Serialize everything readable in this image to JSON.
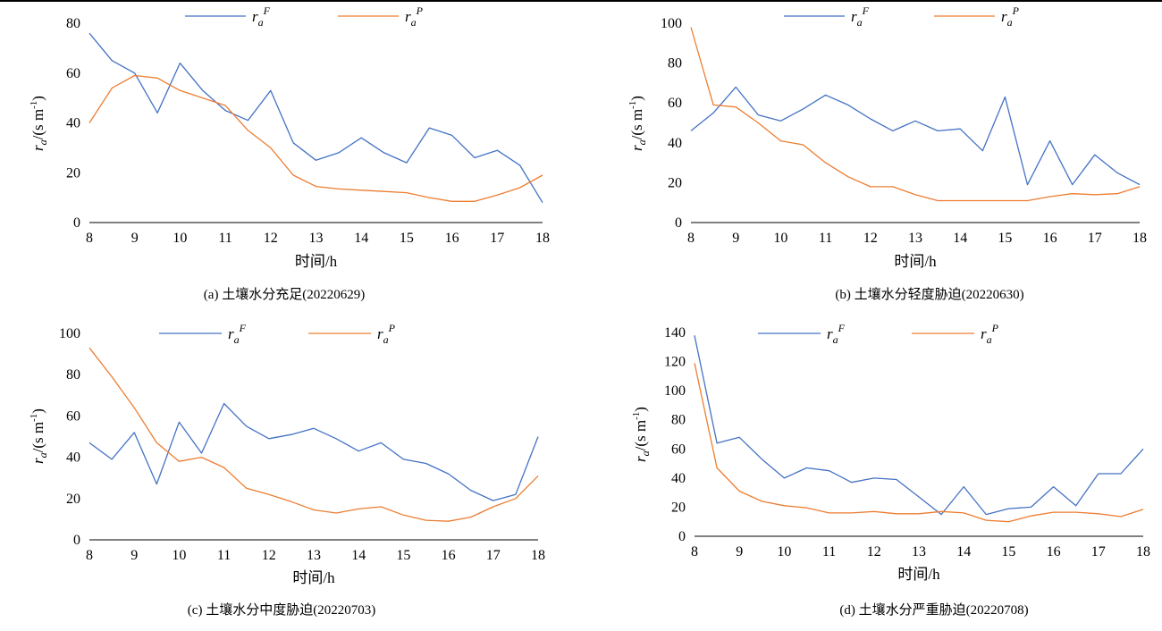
{
  "colors": {
    "F": "#4472c4",
    "P": "#ed7d31",
    "axis": "#000000"
  },
  "legend": {
    "F": {
      "base": "r",
      "sub": "a",
      "sup": "F"
    },
    "P": {
      "base": "r",
      "sub": "a",
      "sup": "P"
    }
  },
  "ylabel": {
    "base": "r",
    "sub": "a",
    "rest": "/(s m",
    "exp": "-1",
    "close": ")"
  },
  "chart_data": [
    {
      "type": "line",
      "caption": "(a) 土壤水分充足(20220629)",
      "xlabel": "时间/h",
      "x": [
        8,
        8.5,
        9,
        9.5,
        10,
        10.5,
        11,
        11.5,
        12,
        12.5,
        13,
        13.5,
        14,
        14.5,
        15,
        15.5,
        16,
        16.5,
        17,
        17.5,
        18
      ],
      "xticks": [
        8,
        9,
        10,
        11,
        12,
        13,
        14,
        15,
        16,
        17,
        18
      ],
      "ylim": [
        0,
        80
      ],
      "yticks": [
        0,
        20,
        40,
        60,
        80
      ],
      "series": [
        {
          "key": "F",
          "values": [
            76,
            65,
            60,
            44,
            64,
            53,
            45,
            41,
            53,
            32,
            25,
            28,
            34,
            28,
            24,
            38,
            35,
            26,
            29,
            23,
            8
          ]
        },
        {
          "key": "P",
          "values": [
            40,
            54,
            59,
            58,
            53,
            50,
            47,
            37,
            30,
            19,
            14.5,
            13.5,
            13,
            12.5,
            12,
            10,
            8.5,
            8.5,
            11,
            14,
            19
          ]
        }
      ]
    },
    {
      "type": "line",
      "caption": "(b) 土壤水分轻度胁迫(20220630)",
      "xlabel": "时间/h",
      "x": [
        8,
        8.5,
        9,
        9.5,
        10,
        10.5,
        11,
        11.5,
        12,
        12.5,
        13,
        13.5,
        14,
        14.5,
        15,
        15.5,
        16,
        16.5,
        17,
        17.5,
        18
      ],
      "xticks": [
        8,
        9,
        10,
        11,
        12,
        13,
        14,
        15,
        16,
        17,
        18
      ],
      "ylim": [
        0,
        100
      ],
      "yticks": [
        0,
        20,
        40,
        60,
        80,
        100
      ],
      "series": [
        {
          "key": "F",
          "values": [
            46,
            55,
            68,
            54,
            51,
            57,
            64,
            59,
            52,
            46,
            51,
            46,
            47,
            36,
            63,
            19,
            41,
            19,
            34,
            25,
            19
          ]
        },
        {
          "key": "P",
          "values": [
            98,
            59,
            58,
            50,
            41,
            39,
            30,
            23,
            18,
            18,
            14,
            11,
            11,
            11,
            11,
            11,
            13,
            14.5,
            14,
            14.5,
            18
          ]
        }
      ]
    },
    {
      "type": "line",
      "caption": "(c) 土壤水分中度胁迫(20220703)",
      "xlabel": "时间/h",
      "x": [
        8,
        8.5,
        9,
        9.5,
        10,
        10.5,
        11,
        11.5,
        12,
        12.5,
        13,
        13.5,
        14,
        14.5,
        15,
        15.5,
        16,
        16.5,
        17,
        17.5,
        18
      ],
      "xticks": [
        8,
        9,
        10,
        11,
        12,
        13,
        14,
        15,
        16,
        17,
        18
      ],
      "ylim": [
        0,
        100
      ],
      "yticks": [
        0,
        20,
        40,
        60,
        80,
        100
      ],
      "series": [
        {
          "key": "F",
          "values": [
            47,
            39,
            52,
            27,
            57,
            42,
            66,
            55,
            49,
            51,
            54,
            49,
            43,
            47,
            39,
            37,
            32,
            24,
            19,
            22,
            50
          ]
        },
        {
          "key": "P",
          "values": [
            93,
            79,
            64,
            47,
            38,
            40,
            35,
            25,
            22,
            18.5,
            14.5,
            13,
            15,
            16,
            12,
            9.5,
            9,
            11,
            16,
            20,
            31
          ]
        }
      ]
    },
    {
      "type": "line",
      "caption": "(d) 土壤水分严重胁迫(20220708)",
      "xlabel": "时间/h",
      "x": [
        8,
        8.5,
        9,
        9.5,
        10,
        10.5,
        11,
        11.5,
        12,
        12.5,
        13,
        13.5,
        14,
        14.5,
        15,
        15.5,
        16,
        16.5,
        17,
        17.5,
        18
      ],
      "xticks": [
        8,
        9,
        10,
        11,
        12,
        13,
        14,
        15,
        16,
        17,
        18
      ],
      "ylim": [
        0,
        140
      ],
      "yticks": [
        0,
        20,
        40,
        60,
        80,
        100,
        120,
        140
      ],
      "series": [
        {
          "key": "F",
          "values": [
            138,
            64,
            68,
            53,
            40,
            47,
            45,
            37,
            40,
            39,
            27,
            15,
            34,
            15,
            19,
            20,
            34,
            21,
            43,
            43,
            60
          ]
        },
        {
          "key": "P",
          "values": [
            119,
            47,
            31,
            24,
            21,
            19.5,
            16,
            16,
            17,
            15.5,
            15.5,
            17,
            16,
            11,
            10,
            14,
            16.5,
            16.5,
            15.5,
            13.5,
            18.5
          ]
        }
      ]
    }
  ]
}
